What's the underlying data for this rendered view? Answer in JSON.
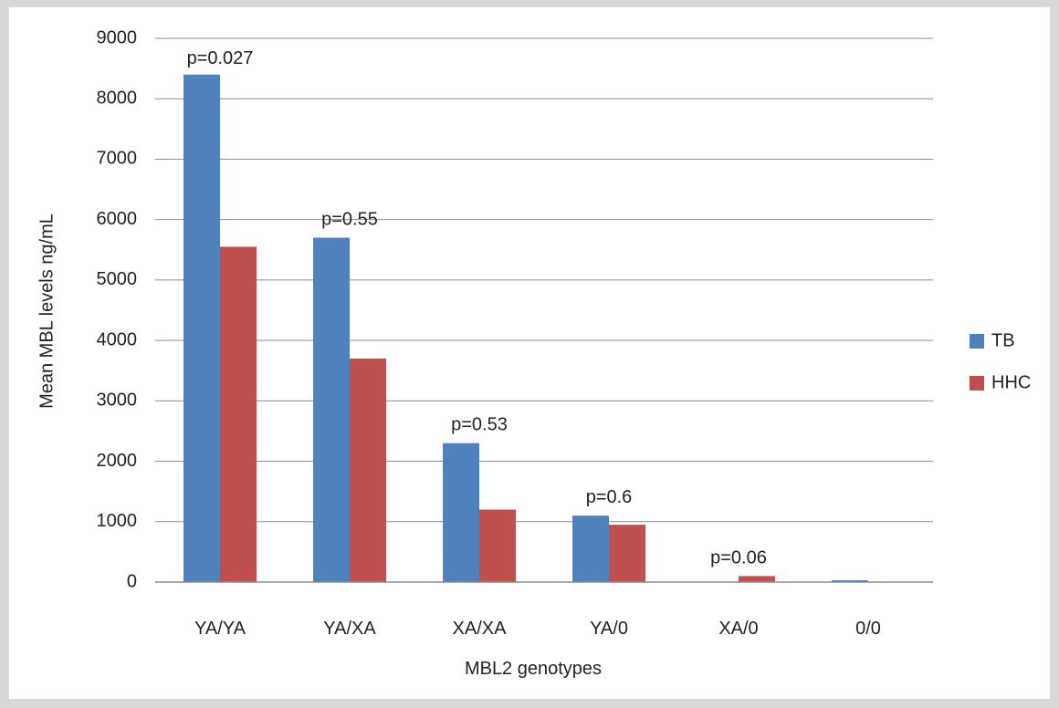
{
  "chart_data": {
    "type": "bar",
    "title": "",
    "xlabel": "MBL2 genotypes",
    "ylabel": "Mean MBL levels ng/mL",
    "ylim": [
      0,
      9000
    ],
    "yticks": [
      0,
      1000,
      2000,
      3000,
      4000,
      5000,
      6000,
      7000,
      8000,
      9000
    ],
    "grid": true,
    "legend_position": "right",
    "categories": [
      "YA/YA",
      "YA/XA",
      "XA/XA",
      "YA/0",
      "XA/0",
      "0/0"
    ],
    "series": [
      {
        "name": "TB",
        "color": "#4f81bd",
        "values": [
          8400,
          5700,
          2300,
          1100,
          0,
          30
        ]
      },
      {
        "name": "HHC",
        "color": "#c0504d",
        "values": [
          5550,
          3700,
          1200,
          950,
          100,
          0
        ]
      }
    ],
    "annotations": [
      "p=0.027",
      "p=0.55",
      "p=0.53",
      "p=0.6",
      "p=0.06",
      ""
    ]
  }
}
